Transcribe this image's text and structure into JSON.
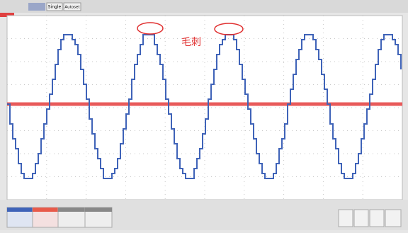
{
  "toolbar": {
    "buttons": [
      "Single",
      "Autoset"
    ]
  },
  "annotation": "毛刺"
}
